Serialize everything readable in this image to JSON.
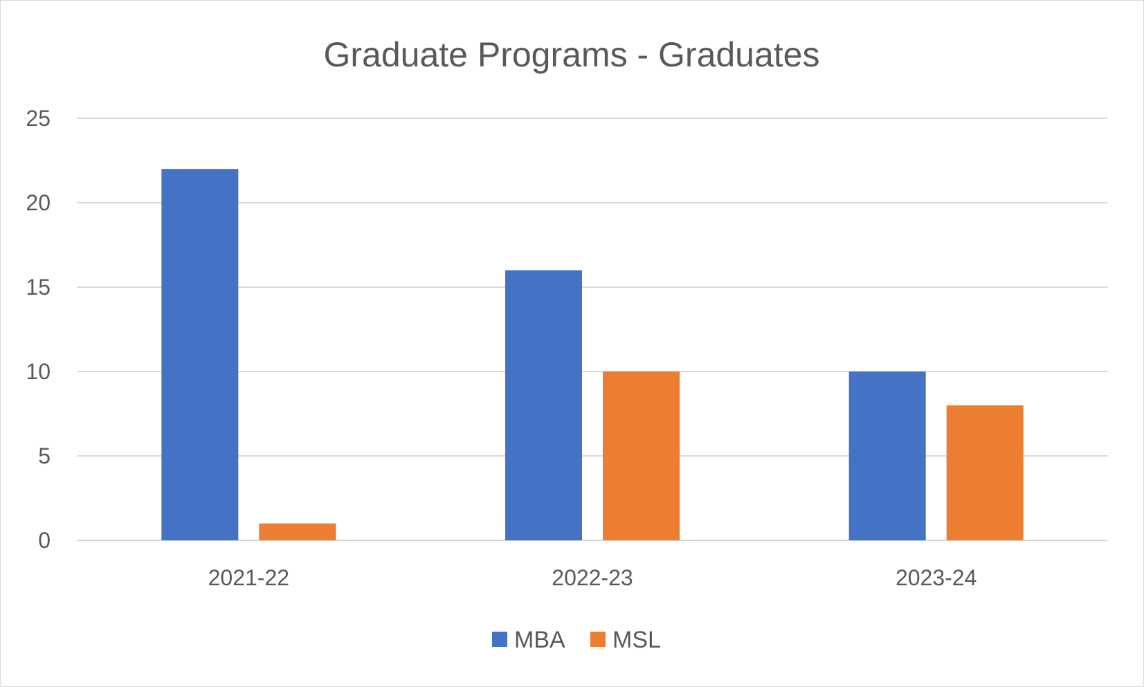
{
  "chart_data": {
    "type": "bar",
    "title": "Graduate Programs - Graduates",
    "xlabel": "",
    "ylabel": "",
    "categories": [
      "2021-22",
      "2022-23",
      "2023-24"
    ],
    "series": [
      {
        "name": "MBA",
        "values": [
          22,
          16,
          10
        ],
        "color": "#4472C4"
      },
      {
        "name": "MSL",
        "values": [
          1,
          10,
          8
        ],
        "color": "#ED7D31"
      }
    ],
    "ylim": [
      0,
      25
    ],
    "yticks": [
      0,
      5,
      10,
      15,
      20,
      25
    ],
    "grid": true,
    "legend": "bottom-center",
    "gridline_color": "#d9d9d9",
    "text_color": "#595959"
  }
}
